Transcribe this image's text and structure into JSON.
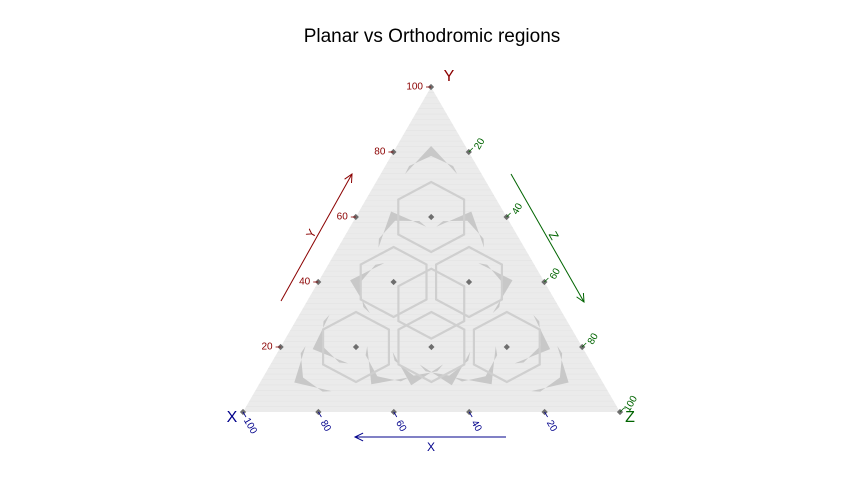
{
  "chart_data": {
    "type": "ternary",
    "title": "Planar vs Orthodromic regions",
    "axes": {
      "x": {
        "name": "X",
        "color": "#00008B",
        "ticks": [
          20,
          40,
          60,
          80,
          100
        ]
      },
      "y": {
        "name": "Y",
        "color": "#8B0000",
        "ticks": [
          20,
          40,
          60,
          80,
          100
        ]
      },
      "z": {
        "name": "Z",
        "color": "#006400",
        "ticks": [
          20,
          40,
          60,
          80,
          100
        ]
      }
    },
    "arrow_labels": {
      "x": "X",
      "y": "Y",
      "z": "Z"
    },
    "points": [
      {
        "x": 100,
        "y": 0,
        "z": 0
      },
      {
        "x": 0,
        "y": 100,
        "z": 0
      },
      {
        "x": 0,
        "y": 0,
        "z": 100
      },
      {
        "x": 20,
        "y": 80,
        "z": 0
      },
      {
        "x": 0,
        "y": 80,
        "z": 20
      },
      {
        "x": 40,
        "y": 60,
        "z": 0
      },
      {
        "x": 20,
        "y": 60,
        "z": 20
      },
      {
        "x": 0,
        "y": 60,
        "z": 40
      },
      {
        "x": 60,
        "y": 40,
        "z": 0
      },
      {
        "x": 40,
        "y": 40,
        "z": 20
      },
      {
        "x": 20,
        "y": 40,
        "z": 40
      },
      {
        "x": 0,
        "y": 40,
        "z": 60
      },
      {
        "x": 80,
        "y": 20,
        "z": 0
      },
      {
        "x": 60,
        "y": 20,
        "z": 20
      },
      {
        "x": 40,
        "y": 20,
        "z": 40
      },
      {
        "x": 20,
        "y": 20,
        "z": 60
      },
      {
        "x": 0,
        "y": 20,
        "z": 80
      },
      {
        "x": 80,
        "y": 0,
        "z": 20
      },
      {
        "x": 60,
        "y": 0,
        "z": 40
      },
      {
        "x": 40,
        "y": 0,
        "z": 60
      },
      {
        "x": 20,
        "y": 0,
        "z": 80
      }
    ],
    "colors": {
      "background": "#EBEBEB",
      "region": "#C8C8C8",
      "point": "#6E6E6E"
    }
  }
}
